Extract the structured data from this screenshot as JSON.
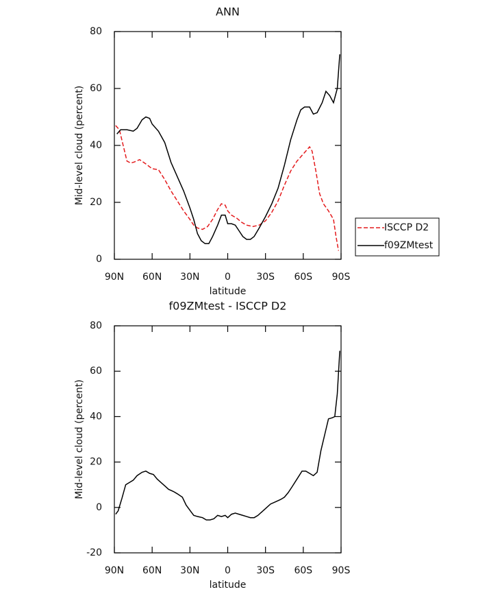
{
  "chart_data": [
    {
      "type": "line",
      "title": "ANN",
      "xlabel": "latitude",
      "ylabel": "Mid-level cloud (percent)",
      "xlim": [
        90,
        -90
      ],
      "xticks": [
        {
          "value": 90,
          "label": "90N"
        },
        {
          "value": 60,
          "label": "60N"
        },
        {
          "value": 30,
          "label": "30N"
        },
        0,
        {
          "value": -30,
          "label": "30S"
        },
        {
          "value": -60,
          "label": "60S"
        },
        {
          "value": -90,
          "label": "90S"
        }
      ],
      "ylim": [
        0,
        80
      ],
      "yticks": [
        0,
        20,
        40,
        60,
        80
      ],
      "legend": "right",
      "series": [
        {
          "name": "ISCCP D2",
          "color": "#e41a1c",
          "dash": true,
          "x": [
            89,
            86,
            83,
            80,
            77,
            74,
            70,
            65,
            60,
            55,
            50,
            45,
            40,
            35,
            30,
            27,
            24,
            20,
            16,
            12,
            8,
            5,
            2,
            0,
            -3,
            -7,
            -11,
            -15,
            -20,
            -25,
            -30,
            -35,
            -40,
            -45,
            -50,
            -55,
            -60,
            -65,
            -67,
            -70,
            -73,
            -76,
            -80,
            -84,
            -86,
            -88
          ],
          "values": [
            47,
            45.5,
            40,
            34.5,
            33.8,
            34.2,
            35,
            33.5,
            31.8,
            31.5,
            28,
            24,
            20.5,
            17,
            14,
            12,
            11,
            10.5,
            11.5,
            14,
            17.5,
            19.5,
            19,
            17,
            15.5,
            14.5,
            13,
            12,
            11.5,
            12,
            13.5,
            16.5,
            20.5,
            26,
            31,
            34.5,
            37,
            39.5,
            38,
            31,
            23,
            19.5,
            17,
            14,
            8,
            3
          ]
        },
        {
          "name": "f09ZMtest",
          "color": "#000000",
          "dash": false,
          "x": [
            88,
            85,
            80,
            75,
            72,
            68,
            65,
            62,
            60,
            55,
            50,
            45,
            40,
            35,
            30,
            27,
            24,
            21,
            18,
            15,
            12,
            8,
            5,
            2,
            0,
            -3,
            -6,
            -9,
            -12,
            -15,
            -18,
            -21,
            -25,
            -30,
            -35,
            -40,
            -45,
            -50,
            -55,
            -58,
            -61,
            -65,
            -68,
            -71,
            -75,
            -78,
            -81,
            -84,
            -87,
            -89
          ],
          "values": [
            44,
            45.5,
            45.5,
            45,
            46,
            49,
            50,
            49.5,
            47.5,
            45,
            41,
            34,
            29,
            24,
            18,
            14,
            9,
            6.5,
            5.5,
            5.5,
            8,
            12,
            15.5,
            15.5,
            12.5,
            12.5,
            12,
            10,
            8,
            7,
            7,
            8,
            11,
            15,
            19.5,
            25,
            33,
            42,
            49,
            52.5,
            53.5,
            53.5,
            51,
            51.5,
            55,
            59,
            57.5,
            55,
            60,
            72
          ]
        }
      ]
    },
    {
      "type": "line",
      "title": "f09ZMtest - ISCCP D2",
      "xlabel": "latitude",
      "ylabel": "Mid-level cloud (percent)",
      "xlim": [
        90,
        -90
      ],
      "xticks": [
        {
          "value": 90,
          "label": "90N"
        },
        {
          "value": 60,
          "label": "60N"
        },
        {
          "value": 30,
          "label": "30N"
        },
        0,
        {
          "value": -30,
          "label": "30S"
        },
        {
          "value": -60,
          "label": "60S"
        },
        {
          "value": -90,
          "label": "90S"
        }
      ],
      "ylim": [
        -20,
        80
      ],
      "yticks": [
        -20,
        0,
        20,
        40,
        60,
        80
      ],
      "series": [
        {
          "color": "#000000",
          "dash": false,
          "x": [
            89,
            87,
            84,
            81,
            78,
            75,
            72,
            68,
            65,
            62,
            59,
            56,
            53,
            50,
            47,
            43,
            40,
            36,
            33,
            29,
            27,
            24,
            20,
            17,
            14,
            11,
            8,
            5,
            2,
            0,
            -3,
            -6,
            -9,
            -12,
            -15,
            -18,
            -21,
            -24,
            -28,
            -31,
            -34,
            -38,
            -42,
            -45,
            -48,
            -51,
            -55,
            -59,
            -62,
            -65,
            -68,
            -71,
            -74,
            -77,
            -80,
            -83,
            -85,
            -87,
            -89
          ],
          "values": [
            -3,
            -1.5,
            4,
            10,
            11,
            12,
            14,
            15.5,
            16,
            15,
            14.5,
            12.5,
            11,
            9.5,
            8,
            7,
            6,
            4.5,
            1,
            -2,
            -3.5,
            -4,
            -4.5,
            -5.5,
            -5.5,
            -5,
            -3.5,
            -4,
            -3.5,
            -4.5,
            -3,
            -2.5,
            -3,
            -3.5,
            -4,
            -4.5,
            -4.5,
            -3.5,
            -1.5,
            0,
            1.5,
            2.5,
            3.5,
            4.5,
            6.5,
            9,
            12.5,
            16,
            16,
            15,
            14,
            15.5,
            25,
            32,
            39,
            39.5,
            40,
            50,
            69
          ]
        }
      ]
    }
  ]
}
